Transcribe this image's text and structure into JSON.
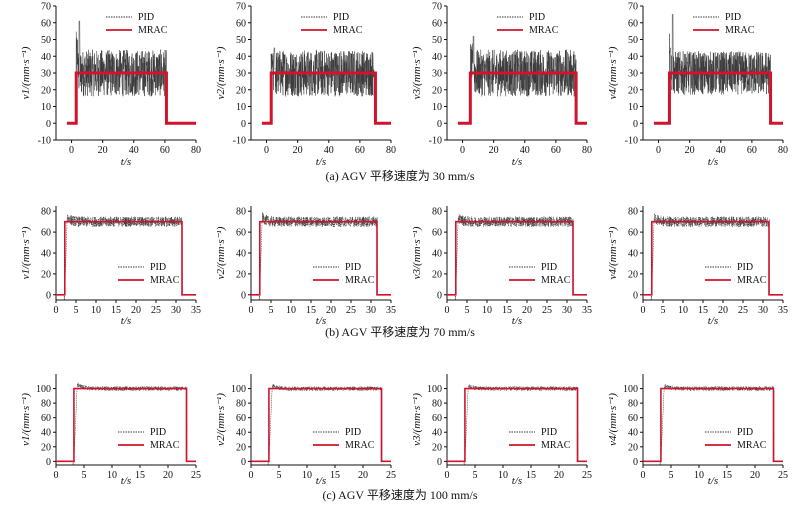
{
  "legend": {
    "pid": "PID",
    "mrac": "MRAC"
  },
  "colors": {
    "pid": "#3a3a3a",
    "mrac": "#d0142c",
    "axis": "#111111"
  },
  "chart_data": [
    {
      "row": 0,
      "type": "line",
      "caption": "(a) AGV 平移速度为 30 mm/s",
      "target": 30,
      "xlim": [
        -10,
        80
      ],
      "ylim": [
        -10,
        70
      ],
      "xticks": [
        0,
        20,
        40,
        60,
        80
      ],
      "yticks": [
        -10,
        0,
        10,
        20,
        30,
        40,
        50,
        60,
        70
      ],
      "xlabel": "t/s",
      "panels": [
        {
          "ylabel": "v1/(mm·s⁻¹)",
          "start": 3,
          "end": 61,
          "amp": 14,
          "peak": 61
        },
        {
          "ylabel": "v2/(mm·s⁻¹)",
          "start": 3,
          "end": 70,
          "amp": 14,
          "peak": 45
        },
        {
          "ylabel": "v3/(mm·s⁻¹)",
          "start": 5,
          "end": 73,
          "amp": 14,
          "peak": 52
        },
        {
          "ylabel": "v4/(mm·s⁻¹)",
          "start": 7,
          "end": 72,
          "amp": 13,
          "peak": 65
        }
      ]
    },
    {
      "row": 1,
      "type": "line",
      "caption": "(b) AGV 平移速度为 70 mm/s",
      "target": 70,
      "xlim": [
        0,
        35
      ],
      "ylim": [
        -5,
        85
      ],
      "xticks": [
        0,
        5,
        10,
        15,
        20,
        25,
        30,
        35
      ],
      "yticks": [
        0,
        20,
        40,
        60,
        80
      ],
      "xlabel": "t/s",
      "panels": [
        {
          "ylabel": "v1/(mm·s⁻¹)",
          "start": 2.2,
          "end": 31.5,
          "amp": 5,
          "peak": 79
        },
        {
          "ylabel": "v2/(mm·s⁻¹)",
          "start": 2.2,
          "end": 31.5,
          "amp": 5,
          "peak": 78
        },
        {
          "ylabel": "v3/(mm·s⁻¹)",
          "start": 2.2,
          "end": 31.5,
          "amp": 5,
          "peak": 78
        },
        {
          "ylabel": "v4/(mm·s⁻¹)",
          "start": 2.2,
          "end": 31.5,
          "amp": 5,
          "peak": 79
        }
      ]
    },
    {
      "row": 2,
      "type": "line",
      "caption": "(c) AGV 平移速度为 100 mm/s",
      "target": 100,
      "xlim": [
        0,
        25
      ],
      "ylim": [
        -5,
        120
      ],
      "xticks": [
        0,
        5,
        10,
        15,
        20,
        25
      ],
      "yticks": [
        0,
        20,
        40,
        60,
        80,
        100
      ],
      "xlabel": "t/s",
      "panels": [
        {
          "ylabel": "v1/(mm·s⁻¹)",
          "start": 3.2,
          "end": 23.3,
          "amp": 3,
          "peak": 111
        },
        {
          "ylabel": "v2/(mm·s⁻¹)",
          "start": 3.2,
          "end": 23.3,
          "amp": 3,
          "peak": 108
        },
        {
          "ylabel": "v3/(mm·s⁻¹)",
          "start": 3.2,
          "end": 23.3,
          "amp": 3,
          "peak": 108
        },
        {
          "ylabel": "v4/(mm·s⁻¹)",
          "start": 3.2,
          "end": 23.3,
          "amp": 3,
          "peak": 108
        }
      ]
    }
  ]
}
